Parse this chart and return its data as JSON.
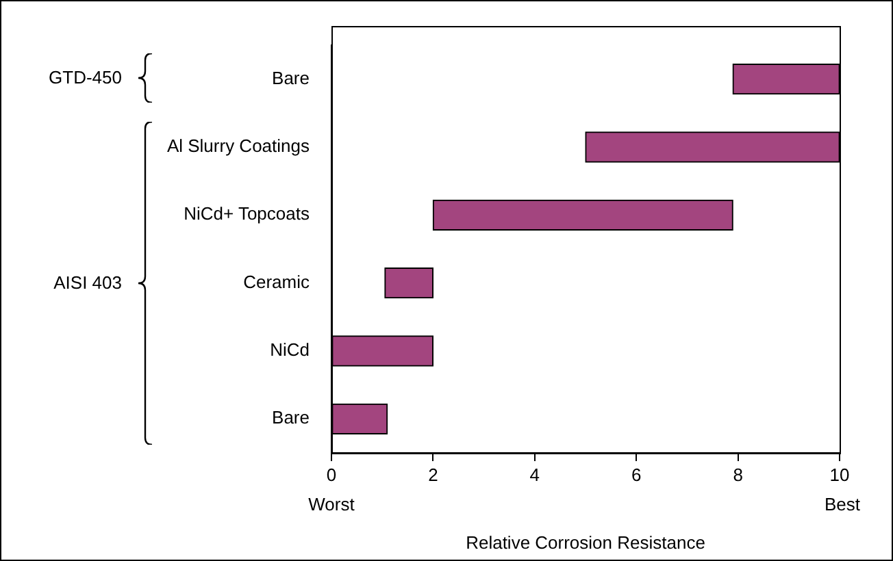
{
  "chart_data": {
    "type": "bar",
    "orientation": "horizontal",
    "xlabel": "Relative Corrosion Resistance",
    "categories": [
      "Bare",
      "Al Slurry Coatings",
      "NiCd+ Topcoats",
      "Ceramic",
      "NiCd",
      "Bare"
    ],
    "base": [
      7.9,
      5,
      2,
      1.05,
      0,
      0
    ],
    "values": [
      2.1,
      5,
      5.9,
      0.95,
      2,
      1.1
    ],
    "color": "#a3457f",
    "xlim": [
      0,
      10
    ],
    "xticks": [
      0,
      2,
      4,
      6,
      8,
      10
    ],
    "annotations": [
      "Worst",
      "Best",
      "GTD-450",
      "AISI 403"
    ],
    "grid": false,
    "legend": false
  }
}
